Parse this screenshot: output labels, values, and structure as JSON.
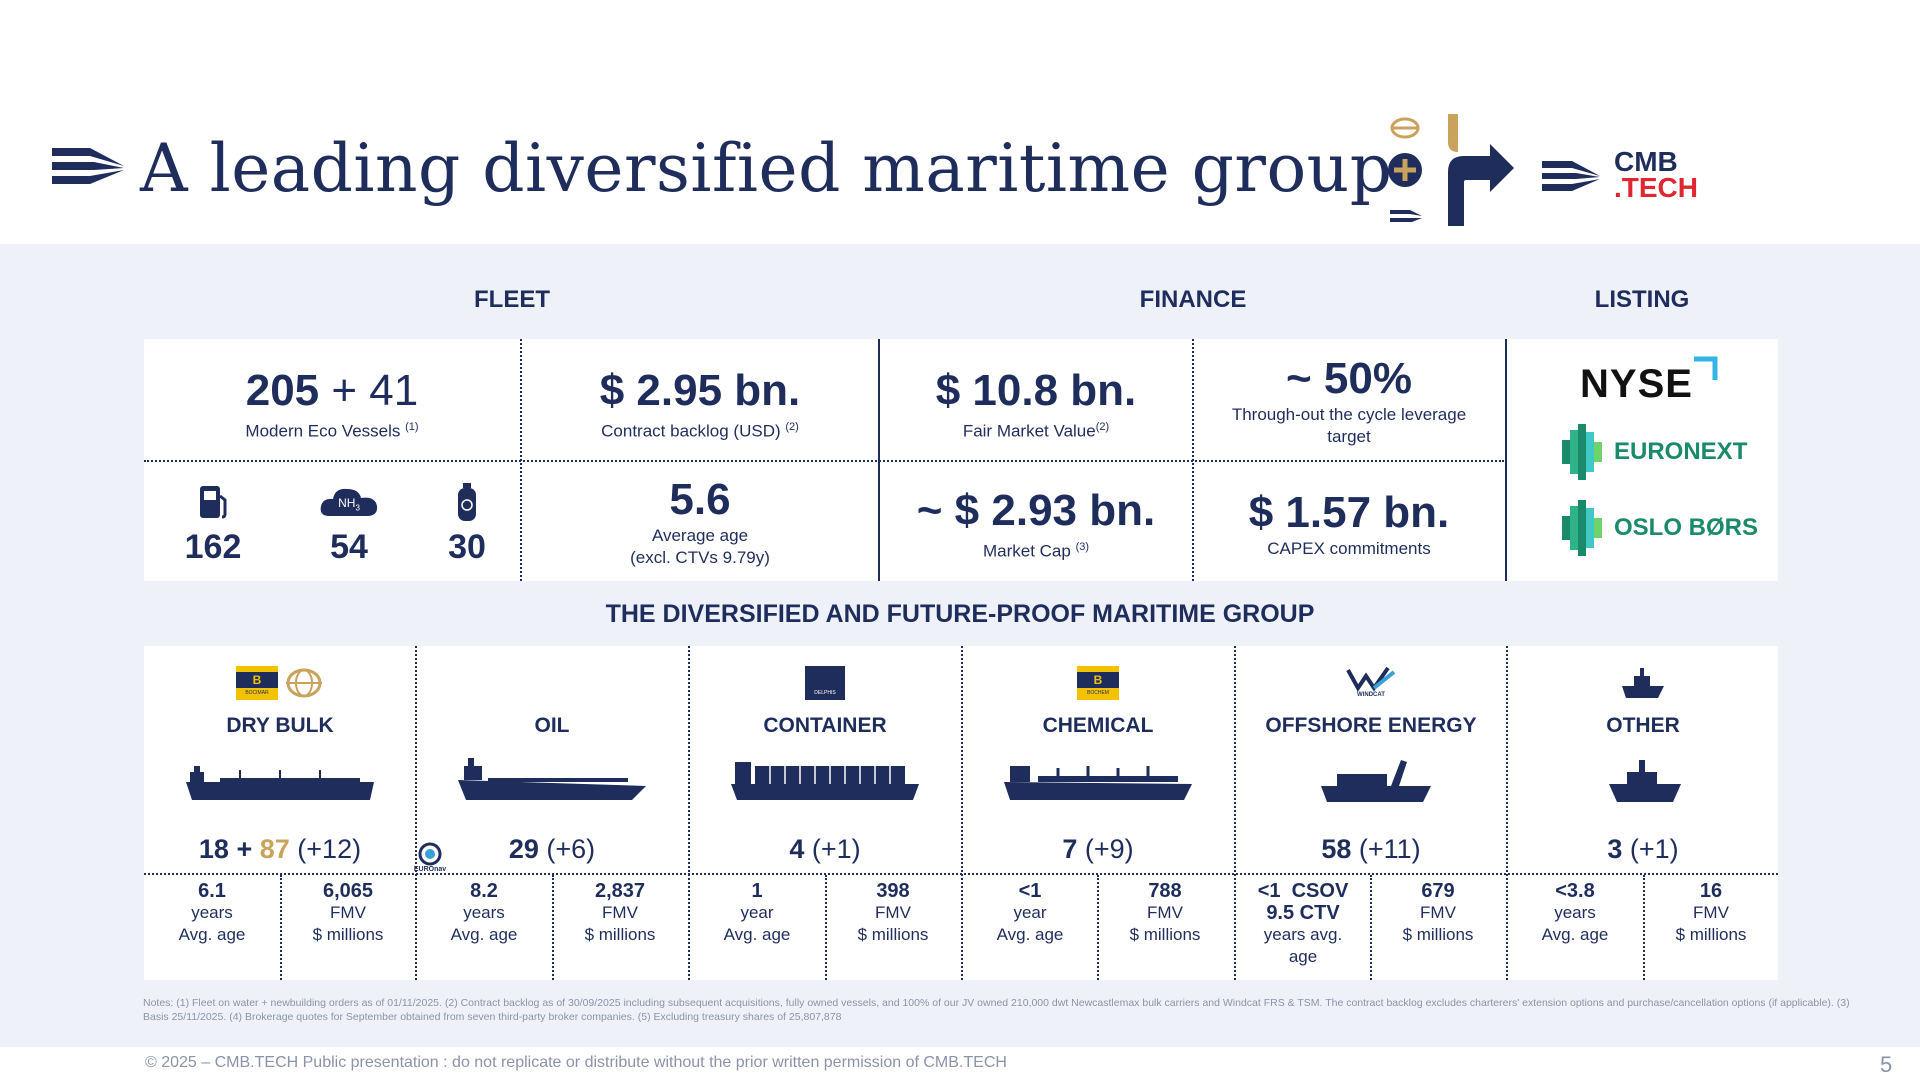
{
  "title": "A leading diversified maritime group",
  "brand": {
    "line1": "CMB",
    "line2": ".TECH",
    "colors": {
      "navy": "#1f2d5c",
      "red": "#e0262e",
      "gold": "#c9a35b",
      "green": "#1a8a6a"
    }
  },
  "sections": {
    "fleet": "FLEET",
    "finance": "FINANCE",
    "listing": "LISTING"
  },
  "fleet": {
    "vessels": {
      "value_main": "205",
      "value_plus": "+ 41",
      "label": "Modern Eco Vessels",
      "note": "(1)"
    },
    "backlog": {
      "value": "$ 2.95 bn.",
      "label": "Contract backlog (USD)",
      "note": "(2)"
    },
    "fuel_types": [
      {
        "icon": "fuel-pump-icon",
        "value": "162"
      },
      {
        "icon": "ammonia-cloud-icon",
        "icon_text": "NH",
        "icon_sub": "3",
        "value": "54"
      },
      {
        "icon": "hydrogen-tank-icon",
        "value": "30"
      }
    ],
    "age": {
      "value": "5.6",
      "label1": "Average age",
      "label2": "(excl. CTVs 9.79y)"
    }
  },
  "finance": {
    "fmv": {
      "value": "$ 10.8 bn.",
      "label": "Fair Market Value",
      "note": "(2)"
    },
    "leverage": {
      "value": "~ 50%",
      "label": "Through-out the cycle leverage target"
    },
    "mcap": {
      "value": "~ $ 2.93 bn.",
      "label": "Market Cap",
      "note": "(3)"
    },
    "capex": {
      "value": "$ 1.57 bn.",
      "label": "CAPEX commitments"
    }
  },
  "listing": {
    "nyse": "NYSE",
    "euronext": "EURONEXT",
    "oslo": "OSLO BØRS"
  },
  "group_title": "THE DIVERSIFIED AND FUTURE-PROOF MARITIME GROUP",
  "segments": [
    {
      "name": "DRY BULK",
      "logo_text": "BOCIMAR",
      "count_a": "18 +",
      "count_b": "87",
      "count_c": "(+12)",
      "stat1": {
        "v": "6.1",
        "l1": "years",
        "l2": "Avg. age"
      },
      "stat2": {
        "v": "6,065",
        "l1": "FMV",
        "l2": "$ millions"
      }
    },
    {
      "name": "OIL",
      "logo_text": "EUROnav",
      "count_a": "29",
      "count_b": "",
      "count_c": "(+6)",
      "stat1": {
        "v": "8.2",
        "l1": "years",
        "l2": "Avg. age"
      },
      "stat2": {
        "v": "2,837",
        "l1": "FMV",
        "l2": "$ millions"
      }
    },
    {
      "name": "CONTAINER",
      "logo_text": "DELPHIS",
      "count_a": "4",
      "count_b": "",
      "count_c": "(+1)",
      "stat1": {
        "v": "1",
        "l1": "year",
        "l2": "Avg. age"
      },
      "stat2": {
        "v": "398",
        "l1": "FMV",
        "l2": "$ millions"
      }
    },
    {
      "name": "CHEMICAL",
      "logo_text": "BOCHEM",
      "count_a": "7",
      "count_b": "",
      "count_c": "(+9)",
      "stat1": {
        "v": "<1",
        "l1": "year",
        "l2": "Avg. age"
      },
      "stat2": {
        "v": "788",
        "l1": "FMV",
        "l2": "$ millions"
      }
    },
    {
      "name": "OFFSHORE ENERGY",
      "logo_text": "WINDCAT",
      "count_a": "58",
      "count_b": "",
      "count_c": "(+11)",
      "stat1": {
        "v": "<1  CSOV",
        "v2": "9.5 CTV",
        "l1": "years avg.",
        "l2": "age"
      },
      "stat2": {
        "v": "679",
        "l1": "FMV",
        "l2": "$ millions"
      }
    },
    {
      "name": "OTHER",
      "logo_text": "",
      "count_a": "3",
      "count_b": "",
      "count_c": "(+1)",
      "stat1": {
        "v": "<3.8",
        "l1": "years",
        "l2": "Avg. age"
      },
      "stat2": {
        "v": "16",
        "l1": "FMV",
        "l2": "$ millions"
      }
    }
  ],
  "notes": "Notes: (1) Fleet on water + newbuilding orders as of 01/11/2025. (2) Contract backlog as of 30/09/2025 including subsequent acquisitions, fully owned vessels, and 100% of our JV owned 210,000 dwt Newcastlemax bulk carriers and Windcat FRS & TSM. The contract backlog excludes charterers' extension options and purchase/cancellation options (if applicable). (3) Basis 25/11/2025. (4) Brokerage quotes for September obtained from seven third-party broker companies. (5) Excluding treasury shares of 25,807,878",
  "footer": "© 2025 – CMB.TECH Public presentation : do not replicate or distribute without the prior written permission of CMB.TECH",
  "page_number": "5"
}
